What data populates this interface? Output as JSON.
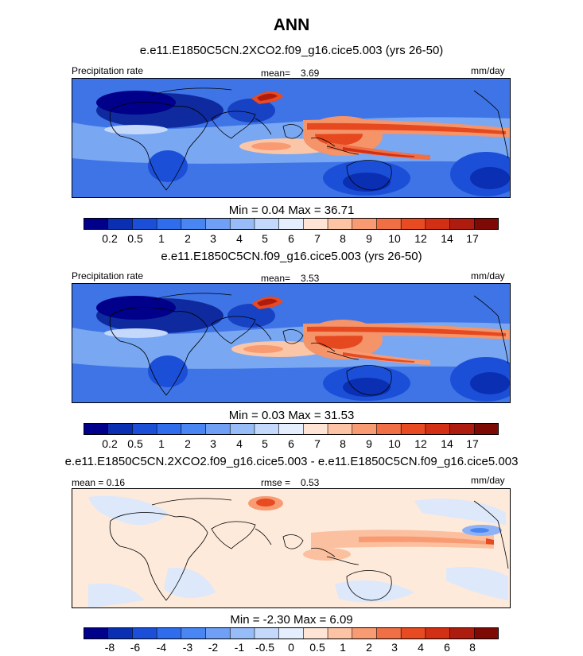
{
  "figure": {
    "title": "ANN",
    "units": "mm/day",
    "variable": "Precipitation rate"
  },
  "colors": {
    "abs_scale": [
      "#00008b",
      "#0a2fb2",
      "#1c4fd8",
      "#2f6ded",
      "#4a86f3",
      "#6fa0f5",
      "#98bcf7",
      "#c3d8fa",
      "#e4eefc",
      "#fde4d4",
      "#fcc3a4",
      "#f89b73",
      "#f06f45",
      "#e84a22",
      "#d32f14",
      "#ad1c0e",
      "#7d0a05"
    ],
    "diff_scale": [
      "#00008b",
      "#0a2fb2",
      "#1c4fd8",
      "#2f6ded",
      "#4a86f3",
      "#6fa0f5",
      "#98bcf7",
      "#c3d8fa",
      "#e4eefc",
      "#fde4d4",
      "#fcc3a4",
      "#f89b73",
      "#f06f45",
      "#e84a22",
      "#d32f14",
      "#ad1c0e",
      "#7d0a05"
    ]
  },
  "panels": [
    {
      "case": "e.e11.E1850C5CN.2XCO2.f09_g16.cice5.003 (yrs 26-50)",
      "left_label": "Precipitation rate",
      "stat_label": "mean=",
      "stat_value": "3.69",
      "right_label": "mm/day",
      "minmax": "Min =   0.04 Max =  36.71",
      "ticks": [
        "0.2",
        "0.5",
        "1",
        "2",
        "3",
        "4",
        "5",
        "6",
        "7",
        "8",
        "9",
        "10",
        "12",
        "14",
        "17"
      ]
    },
    {
      "case": "e.e11.E1850C5CN.f09_g16.cice5.003 (yrs 26-50)",
      "left_label": "Precipitation rate",
      "stat_label": "mean=",
      "stat_value": "3.53",
      "right_label": "mm/day",
      "minmax": "Min =   0.03 Max =  31.53",
      "ticks": [
        "0.2",
        "0.5",
        "1",
        "2",
        "3",
        "4",
        "5",
        "6",
        "7",
        "8",
        "9",
        "10",
        "12",
        "14",
        "17"
      ]
    },
    {
      "case": "e.e11.E1850C5CN.2XCO2.f09_g16.cice5.003 - e.e11.E1850C5CN.f09_g16.cice5.003",
      "left_label": "mean =   0.16",
      "stat_label": "rmse =",
      "stat_value": "0.53",
      "right_label": "mm/day",
      "minmax": "Min =  -2.30 Max =   6.09",
      "ticks": [
        "-8",
        "-6",
        "-4",
        "-3",
        "-2",
        "-1",
        "-0.5",
        "0",
        "0.5",
        "1",
        "2",
        "3",
        "4",
        "6",
        "8"
      ]
    }
  ],
  "chart_data": [
    {
      "type": "heatmap",
      "title": "e.e11.E1850C5CN.2XCO2.f09_g16.cice5.003 (yrs 26-50)",
      "variable": "Precipitation rate",
      "units": "mm/day",
      "mean": 3.69,
      "min": 0.04,
      "max": 36.71,
      "contour_levels": [
        0.2,
        0.5,
        1,
        2,
        3,
        4,
        5,
        6,
        7,
        8,
        9,
        10,
        12,
        14,
        17
      ]
    },
    {
      "type": "heatmap",
      "title": "e.e11.E1850C5CN.f09_g16.cice5.003 (yrs 26-50)",
      "variable": "Precipitation rate",
      "units": "mm/day",
      "mean": 3.53,
      "min": 0.03,
      "max": 31.53,
      "contour_levels": [
        0.2,
        0.5,
        1,
        2,
        3,
        4,
        5,
        6,
        7,
        8,
        9,
        10,
        12,
        14,
        17
      ]
    },
    {
      "type": "heatmap",
      "title": "e.e11.E1850C5CN.2XCO2.f09_g16.cice5.003 - e.e11.E1850C5CN.f09_g16.cice5.003",
      "units": "mm/day",
      "mean": 0.16,
      "rmse": 0.53,
      "min": -2.3,
      "max": 6.09,
      "contour_levels": [
        -8,
        -6,
        -4,
        -3,
        -2,
        -1,
        -0.5,
        0,
        0.5,
        1,
        2,
        3,
        4,
        6,
        8
      ]
    }
  ]
}
